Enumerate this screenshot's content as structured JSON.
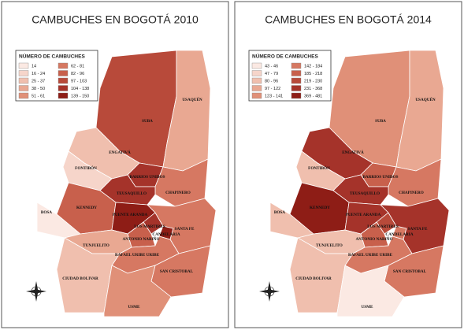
{
  "maps": [
    {
      "title": "CAMBUCHES EN BOGOTÁ 2010",
      "legend": {
        "title": "NÚMERO DE CAMBUCHES",
        "items": [
          {
            "label": "14",
            "color": "#fbe9e3"
          },
          {
            "label": "16 - 24",
            "color": "#f6d5ca"
          },
          {
            "label": "25 - 37",
            "color": "#f0bfae"
          },
          {
            "label": "38 - 50",
            "color": "#e9a892"
          },
          {
            "label": "51 - 61",
            "color": "#e09078"
          },
          {
            "label": "62 - 81",
            "color": "#d67862"
          },
          {
            "label": "82 - 96",
            "color": "#c8604c"
          },
          {
            "label": "97 - 103",
            "color": "#b84a3a"
          },
          {
            "label": "104 - 138",
            "color": "#a5332a"
          },
          {
            "label": "139 - 150",
            "color": "#8e1d16"
          }
        ]
      },
      "localities": [
        {
          "name": "SUBA",
          "color": "#b84a3a"
        },
        {
          "name": "USAQUÉN",
          "color": "#e9a892"
        },
        {
          "name": "ENGATIVÁ",
          "color": "#f0bfae"
        },
        {
          "name": "FONTIBÓN",
          "color": "#f6d5ca"
        },
        {
          "name": "BARRIOS UNIDOS",
          "color": "#a5332a"
        },
        {
          "name": "CHAPINERO",
          "color": "#d67862"
        },
        {
          "name": "TEUSAQUILLO",
          "color": "#a5332a"
        },
        {
          "name": "KENNEDY",
          "color": "#c8604c"
        },
        {
          "name": "BOSA",
          "color": "#fbe9e3"
        },
        {
          "name": "PUENTE ARANDA",
          "color": "#8e1d16"
        },
        {
          "name": "LOS MARTIRES",
          "color": "#a5332a"
        },
        {
          "name": "ANTONIO NARIÑO",
          "color": "#c8604c"
        },
        {
          "name": "CANDELARIA",
          "color": "#8e1d16"
        },
        {
          "name": "SANTA FE",
          "color": "#d67862"
        },
        {
          "name": "TUNJUELITO",
          "color": "#e9a892"
        },
        {
          "name": "RAFAEL URIBE URIBE",
          "color": "#d67862"
        },
        {
          "name": "SAN CRISTOBAL",
          "color": "#d67862"
        },
        {
          "name": "CIUDAD BOLIVAR",
          "color": "#f0bfae"
        },
        {
          "name": "USME",
          "color": "#e09078"
        }
      ]
    },
    {
      "title": "CAMBUCHES EN BOGOTÁ 2014",
      "legend": {
        "title": "NÚMERO DE CAMBUCHES",
        "items": [
          {
            "label": "43 - 46",
            "color": "#fbe9e3"
          },
          {
            "label": "47 - 79",
            "color": "#f6d5ca"
          },
          {
            "label": "80 - 96",
            "color": "#f0bfae"
          },
          {
            "label": "97 - 122",
            "color": "#e9a892"
          },
          {
            "label": "123 - 141",
            "color": "#e09078"
          },
          {
            "label": "142 - 184",
            "color": "#d67862"
          },
          {
            "label": "185 - 218",
            "color": "#c8604c"
          },
          {
            "label": "219 - 230",
            "color": "#b84a3a"
          },
          {
            "label": "231 - 368",
            "color": "#a5332a"
          },
          {
            "label": "369 - 481",
            "color": "#8e1d16"
          }
        ]
      },
      "localities": [
        {
          "name": "SUBA",
          "color": "#e09078"
        },
        {
          "name": "USAQUÉN",
          "color": "#e9a892"
        },
        {
          "name": "ENGATIVÁ",
          "color": "#a5332a"
        },
        {
          "name": "FONTIBÓN",
          "color": "#f0bfae"
        },
        {
          "name": "BARRIOS UNIDOS",
          "color": "#c8604c"
        },
        {
          "name": "CHAPINERO",
          "color": "#d67862"
        },
        {
          "name": "TEUSAQUILLO",
          "color": "#a5332a"
        },
        {
          "name": "KENNEDY",
          "color": "#8e1d16"
        },
        {
          "name": "BOSA",
          "color": "#f0bfae"
        },
        {
          "name": "PUENTE ARANDA",
          "color": "#a5332a"
        },
        {
          "name": "LOS MARTIRES",
          "color": "#b84a3a"
        },
        {
          "name": "ANTONIO NARIÑO",
          "color": "#c8604c"
        },
        {
          "name": "CANDELARIA",
          "color": "#d67862"
        },
        {
          "name": "SANTA FE",
          "color": "#a5332a"
        },
        {
          "name": "TUNJUELITO",
          "color": "#f0bfae"
        },
        {
          "name": "RAFAEL URIBE URIBE",
          "color": "#d67862"
        },
        {
          "name": "SAN CRISTOBAL",
          "color": "#d67862"
        },
        {
          "name": "CIUDAD BOLIVAR",
          "color": "#f0bfae"
        },
        {
          "name": "USME",
          "color": "#fbe9e3"
        }
      ]
    }
  ]
}
